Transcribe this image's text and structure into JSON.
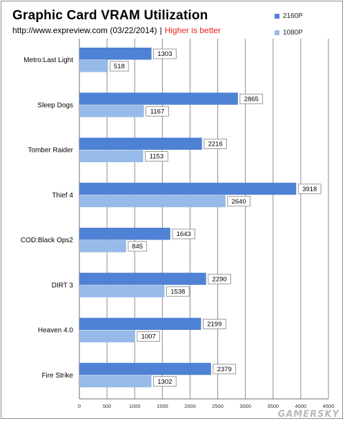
{
  "header": {
    "title": "Graphic Card VRAM Utilization",
    "source": "http://www.expreview.com (03/22/2014)",
    "separator": "|",
    "note": "Higher is better"
  },
  "watermark": "GAMERSKY",
  "colors": {
    "series_2160p": "#4f81d4",
    "series_1080p": "#97bbe8",
    "grid": "#8a8a8a",
    "note": "#e8231d"
  },
  "chart_data": {
    "type": "bar",
    "orientation": "horizontal",
    "title": "Graphic Card VRAM Utilization",
    "categories": [
      "Metro:Last Light",
      "Sleep Dogs",
      "Tomber Raider",
      "Thief 4",
      "COD:Black Ops2",
      "DIRT 3",
      "Heaven 4.0",
      "Fire Strike"
    ],
    "series": [
      {
        "name": "2160P",
        "values": [
          1303,
          2865,
          2216,
          3918,
          1643,
          2290,
          2199,
          2379
        ]
      },
      {
        "name": "1080P",
        "values": [
          518,
          1167,
          1153,
          2640,
          845,
          1538,
          1007,
          1302
        ]
      }
    ],
    "xlim": [
      0,
      4500
    ],
    "xticks": [
      0,
      500,
      1000,
      1500,
      2000,
      2500,
      3000,
      3500,
      4000,
      4500
    ],
    "grid": true,
    "legend": "top-right",
    "data_labels": true
  }
}
